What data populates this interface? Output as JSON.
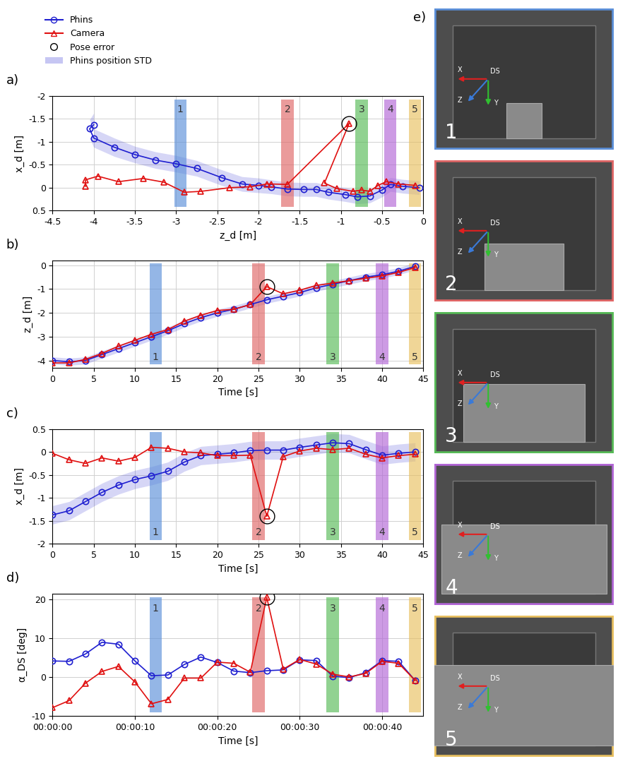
{
  "chart_data": [
    {
      "type": "line",
      "panel": "a)",
      "x_label": "z_d [m]",
      "y_label": "x_d [m]",
      "xlim": [
        -4.5,
        0
      ],
      "xticks": [
        -4.5,
        -4,
        -3.5,
        -3,
        -2.5,
        -2,
        -1.5,
        -1,
        -0.5,
        0
      ],
      "ylim": [
        0.5,
        -2
      ],
      "yticks": [
        -2,
        -1.5,
        -1,
        -0.5,
        0,
        0.5
      ],
      "grid": true,
      "legend": "upper left",
      "series": [
        {
          "name": "Phins",
          "color": "#1f1fd0",
          "marker": "circle",
          "line_style": "solid",
          "x": [
            -4.0,
            -4.05,
            -4.0,
            -3.75,
            -3.5,
            -3.25,
            -3.0,
            -2.75,
            -2.45,
            -2.2,
            -2.0,
            -1.85,
            -1.65,
            -1.45,
            -1.3,
            -1.15,
            -0.95,
            -0.8,
            -0.65,
            -0.5,
            -0.4,
            -0.25,
            -0.05
          ],
          "values": [
            -1.37,
            -1.28,
            -1.08,
            -0.88,
            -0.72,
            -0.6,
            -0.52,
            -0.42,
            -0.22,
            -0.08,
            -0.05,
            -0.02,
            0.03,
            0.04,
            0.04,
            0.1,
            0.15,
            0.2,
            0.18,
            0.05,
            -0.07,
            -0.03,
            0.0
          ],
          "std_name": "Phins position STD",
          "std": [
            0.25,
            0.2,
            0.2,
            0.2,
            0.18,
            0.18,
            0.18,
            0.17,
            0.17,
            0.16,
            0.16,
            0.15,
            0.15,
            0.15,
            0.15,
            0.15,
            0.15,
            0.15,
            0.15,
            0.15,
            0.15,
            0.15,
            0.15
          ]
        },
        {
          "name": "Camera",
          "color": "#e01010",
          "marker": "triangle",
          "line_style": "solid",
          "x": [
            -4.1,
            -4.1,
            -3.95,
            -3.7,
            -3.4,
            -3.15,
            -2.9,
            -2.7,
            -2.35,
            -2.1,
            -1.9,
            -1.85,
            -1.65,
            -0.9,
            -1.2,
            -1.05,
            -0.85,
            -0.75,
            -0.65,
            -0.55,
            -0.45,
            -0.3,
            -0.1
          ],
          "values": [
            -0.03,
            -0.17,
            -0.25,
            -0.13,
            -0.2,
            -0.12,
            0.1,
            0.08,
            0.0,
            -0.02,
            -0.08,
            -0.08,
            -0.07,
            -1.4,
            -0.1,
            0.02,
            0.08,
            0.05,
            0.08,
            -0.05,
            -0.13,
            -0.08,
            -0.05
          ]
        }
      ],
      "pose_error": {
        "name": "Pose error",
        "x": -0.9,
        "y": -1.4
      },
      "bands": [
        {
          "label": "1",
          "x": -2.95,
          "color": "#5b8fd9"
        },
        {
          "label": "2",
          "x": -1.65,
          "color": "#e06666"
        },
        {
          "label": "3",
          "x": -0.75,
          "color": "#57bb57"
        },
        {
          "label": "4",
          "x": -0.4,
          "color": "#b266d6"
        },
        {
          "label": "5",
          "x": -0.1,
          "color": "#e8c060"
        }
      ]
    },
    {
      "type": "line",
      "panel": "b)",
      "x_label": "Time [s]",
      "y_label": "z_d [m]",
      "xlim": [
        0,
        45
      ],
      "xticks": [
        0,
        5,
        10,
        15,
        20,
        25,
        30,
        35,
        40,
        45
      ],
      "ylim": [
        -4.3,
        0.2
      ],
      "yticks": [
        -4,
        -3,
        -2,
        -1,
        0
      ],
      "grid": true,
      "series": [
        {
          "name": "Phins",
          "color": "#1f1fd0",
          "marker": "circle",
          "line_style": "solid",
          "x": [
            0,
            2,
            4,
            6,
            8,
            10,
            12,
            14,
            16,
            18,
            20,
            22,
            24,
            26,
            28,
            30,
            32,
            34,
            36,
            38,
            40,
            42,
            44
          ],
          "values": [
            -4.0,
            -4.05,
            -4.0,
            -3.75,
            -3.5,
            -3.25,
            -3.0,
            -2.75,
            -2.45,
            -2.2,
            -2.0,
            -1.85,
            -1.65,
            -1.45,
            -1.3,
            -1.15,
            -0.95,
            -0.8,
            -0.65,
            -0.5,
            -0.4,
            -0.25,
            -0.05
          ],
          "std_name": "Phins position STD",
          "std": [
            0.15,
            0.15,
            0.15,
            0.15,
            0.15,
            0.15,
            0.15,
            0.15,
            0.15,
            0.15,
            0.15,
            0.15,
            0.15,
            0.15,
            0.15,
            0.15,
            0.15,
            0.15,
            0.15,
            0.15,
            0.15,
            0.15,
            0.15
          ]
        },
        {
          "name": "Camera",
          "color": "#e01010",
          "marker": "triangle",
          "line_style": "solid",
          "x": [
            0,
            2,
            4,
            6,
            8,
            10,
            12,
            14,
            16,
            18,
            20,
            22,
            24,
            26,
            28,
            30,
            32,
            34,
            36,
            38,
            40,
            42,
            44
          ],
          "values": [
            -4.1,
            -4.1,
            -3.95,
            -3.7,
            -3.4,
            -3.15,
            -2.9,
            -2.7,
            -2.35,
            -2.1,
            -1.9,
            -1.85,
            -1.65,
            -0.9,
            -1.2,
            -1.05,
            -0.85,
            -0.75,
            -0.65,
            -0.55,
            -0.45,
            -0.3,
            -0.1
          ]
        }
      ],
      "pose_error": {
        "name": "Pose error",
        "x": 26,
        "y": -0.9
      },
      "bands": [
        {
          "label": "1",
          "x": 12.5,
          "color": "#5b8fd9"
        },
        {
          "label": "2",
          "x": 25,
          "color": "#e06666"
        },
        {
          "label": "3",
          "x": 34,
          "color": "#57bb57"
        },
        {
          "label": "4",
          "x": 40,
          "color": "#b266d6"
        },
        {
          "label": "5",
          "x": 44,
          "color": "#e8c060"
        }
      ]
    },
    {
      "type": "line",
      "panel": "c)",
      "x_label": "Time [s]",
      "y_label": "x_d [m]",
      "xlim": [
        0,
        45
      ],
      "xticks": [
        0,
        5,
        10,
        15,
        20,
        25,
        30,
        35,
        40,
        45
      ],
      "ylim": [
        -2,
        0.5
      ],
      "yticks": [
        -2,
        -1.5,
        -1,
        -0.5,
        0,
        0.5
      ],
      "grid": true,
      "series": [
        {
          "name": "Phins",
          "color": "#1f1fd0",
          "marker": "circle",
          "line_style": "solid",
          "x": [
            0,
            2,
            4,
            6,
            8,
            10,
            12,
            14,
            16,
            18,
            20,
            22,
            24,
            26,
            28,
            30,
            32,
            34,
            36,
            38,
            40,
            42,
            44
          ],
          "values": [
            -1.37,
            -1.28,
            -1.08,
            -0.88,
            -0.72,
            -0.6,
            -0.52,
            -0.42,
            -0.22,
            -0.08,
            -0.05,
            -0.02,
            0.03,
            0.04,
            0.04,
            0.1,
            0.15,
            0.2,
            0.18,
            0.05,
            -0.07,
            -0.03,
            0.0
          ],
          "std_name": "Phins position STD",
          "std": [
            0.2,
            0.2,
            0.2,
            0.2,
            0.2,
            0.2,
            0.2,
            0.2,
            0.2,
            0.2,
            0.2,
            0.2,
            0.2,
            0.2,
            0.2,
            0.2,
            0.2,
            0.2,
            0.2,
            0.2,
            0.2,
            0.2,
            0.2
          ]
        },
        {
          "name": "Camera",
          "color": "#e01010",
          "marker": "triangle",
          "line_style": "solid",
          "x": [
            0,
            2,
            4,
            6,
            8,
            10,
            12,
            14,
            16,
            18,
            20,
            22,
            24,
            26,
            28,
            30,
            32,
            34,
            36,
            38,
            40,
            42,
            44
          ],
          "values": [
            -0.03,
            -0.17,
            -0.25,
            -0.13,
            -0.2,
            -0.12,
            0.1,
            0.08,
            0.0,
            -0.02,
            -0.08,
            -0.08,
            -0.07,
            -1.4,
            -0.1,
            0.02,
            0.08,
            0.05,
            0.08,
            -0.05,
            -0.13,
            -0.08,
            -0.05
          ]
        }
      ],
      "pose_error": {
        "name": "Pose error",
        "x": 26,
        "y": -1.4
      },
      "bands": [
        {
          "label": "1",
          "x": 12.5,
          "color": "#5b8fd9"
        },
        {
          "label": "2",
          "x": 25,
          "color": "#e06666"
        },
        {
          "label": "3",
          "x": 34,
          "color": "#57bb57"
        },
        {
          "label": "4",
          "x": 40,
          "color": "#b266d6"
        },
        {
          "label": "5",
          "x": 44,
          "color": "#e8c060"
        }
      ]
    },
    {
      "type": "line",
      "panel": "d)",
      "x_label": "Time [s]",
      "y_label": "α_DS [deg]",
      "xlim": [
        0,
        45
      ],
      "xticks": [
        {
          "value": 0,
          "label": "00:00:00"
        },
        {
          "value": 10,
          "label": "00:00:10"
        },
        {
          "value": 20,
          "label": "00:00:20"
        },
        {
          "value": 30,
          "label": "00:00:30"
        },
        {
          "value": 40,
          "label": "00:00:40"
        }
      ],
      "ylim": [
        -10,
        21.5
      ],
      "yticks": [
        -10,
        0,
        10,
        20
      ],
      "grid": true,
      "series": [
        {
          "name": "Phins",
          "color": "#1f1fd0",
          "marker": "circle",
          "line_style": "solid",
          "x": [
            0,
            2,
            4,
            6,
            8,
            10,
            12,
            14,
            16,
            18,
            20,
            22,
            24,
            26,
            28,
            30,
            32,
            34,
            36,
            38,
            40,
            42,
            44
          ],
          "values": [
            4.2,
            4.1,
            6.0,
            9.0,
            8.5,
            4.2,
            0.4,
            0.6,
            3.3,
            5.2,
            3.8,
            1.6,
            1.2,
            1.7,
            1.9,
            4.5,
            4.3,
            0.3,
            -0.1,
            1.2,
            4.3,
            4.1,
            -0.8
          ]
        },
        {
          "name": "Camera",
          "color": "#e01010",
          "marker": "triangle",
          "line_style": "solid",
          "x": [
            0,
            2,
            4,
            6,
            8,
            10,
            12,
            14,
            16,
            18,
            20,
            22,
            24,
            26,
            28,
            30,
            32,
            34,
            36,
            38,
            40,
            42,
            44
          ],
          "values": [
            -7.8,
            -6.0,
            -1.5,
            1.5,
            2.8,
            -1.2,
            -6.8,
            -5.7,
            -0.2,
            -0.2,
            3.9,
            3.6,
            1.3,
            20.5,
            2.1,
            4.6,
            3.4,
            0.8,
            0.1,
            1.0,
            4.1,
            3.6,
            -0.8
          ]
        }
      ],
      "pose_error": {
        "name": "Pose error",
        "x": 26,
        "y": 20.5
      },
      "bands": [
        {
          "label": "1",
          "x": 12.5,
          "color": "#5b8fd9"
        },
        {
          "label": "2",
          "x": 25,
          "color": "#e06666"
        },
        {
          "label": "3",
          "x": 34,
          "color": "#57bb57"
        },
        {
          "label": "4",
          "x": 40,
          "color": "#b266d6"
        },
        {
          "label": "5",
          "x": 44,
          "color": "#e8c060"
        }
      ]
    }
  ],
  "panel_e": {
    "label": "e)",
    "axis_labels": {
      "x": "X",
      "origin": "DS",
      "z": "Z",
      "y": "Y"
    }
  }
}
